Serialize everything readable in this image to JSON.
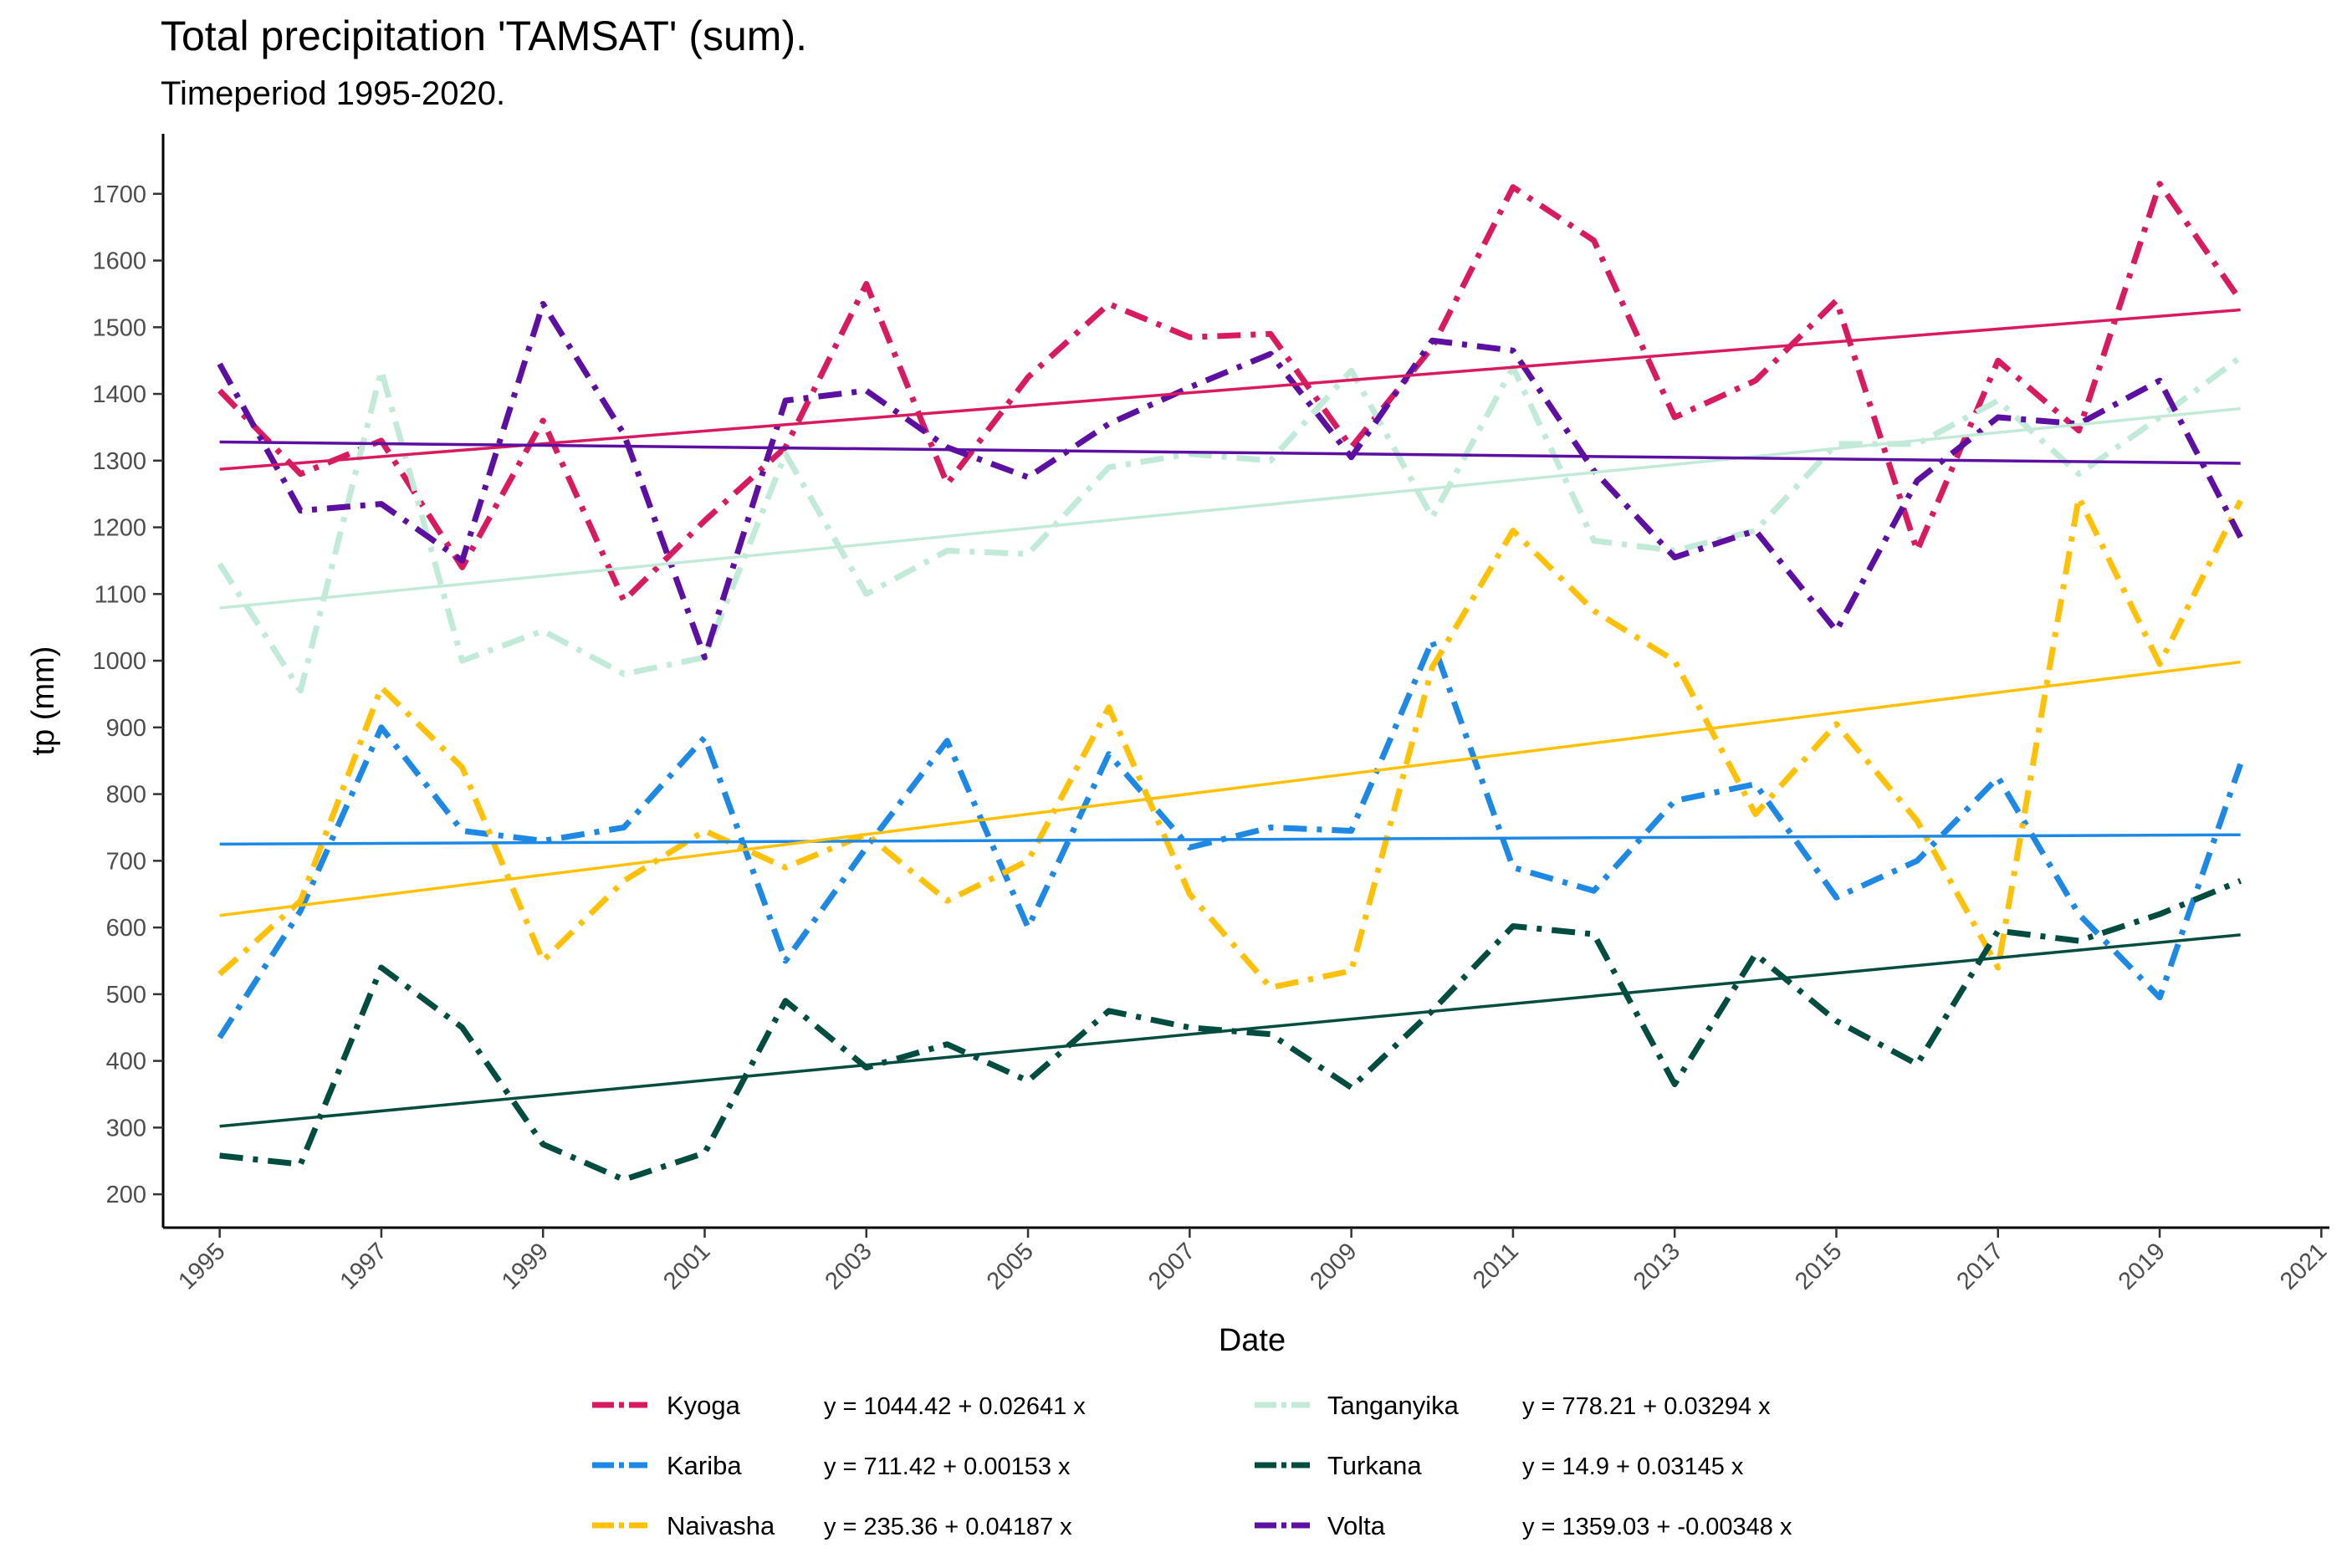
{
  "chart_data": {
    "type": "line",
    "title": "Total precipitation 'TAMSAT' (sum).",
    "subtitle": "Timeperiod 1995-2020.",
    "xlabel": "Date",
    "ylabel": "tp (mm)",
    "xlim": [
      1994.3,
      2021.1
    ],
    "ylim": [
      150,
      1790
    ],
    "x_ticks": [
      "1995",
      "1997",
      "1999",
      "2001",
      "2003",
      "2005",
      "2007",
      "2009",
      "2011",
      "2013",
      "2015",
      "2017",
      "2019",
      "2021"
    ],
    "y_ticks": [
      "200",
      "300",
      "400",
      "500",
      "600",
      "700",
      "800",
      "900",
      "1000",
      "1100",
      "1200",
      "1300",
      "1400",
      "1500",
      "1600",
      "1700"
    ],
    "x": [
      1995,
      1996,
      1997,
      1998,
      1999,
      2000,
      2001,
      2002,
      2003,
      2004,
      2005,
      2006,
      2007,
      2008,
      2009,
      2010,
      2011,
      2012,
      2013,
      2014,
      2015,
      2016,
      2017,
      2018,
      2019,
      2020
    ],
    "grid": false,
    "legend_position": "bottom",
    "series": [
      {
        "name": "Kyoga",
        "color": "#D81B60",
        "equation": "y = 1044.42 + 0.02641 x",
        "values": [
          1405,
          1280,
          1330,
          1140,
          1360,
          1090,
          1210,
          1320,
          1565,
          1265,
          1425,
          1535,
          1485,
          1490,
          1320,
          1470,
          1710,
          1630,
          1365,
          1420,
          1540,
          1165,
          1450,
          1345,
          1715,
          1540
        ],
        "trend": [
          1287,
          1526
        ]
      },
      {
        "name": "Kariba",
        "color": "#1E88E5",
        "equation": "y = 711.42 + 0.00153 x",
        "values": [
          435,
          625,
          900,
          745,
          730,
          750,
          885,
          550,
          720,
          880,
          600,
          860,
          720,
          750,
          745,
          1030,
          690,
          655,
          790,
          815,
          645,
          700,
          825,
          620,
          495,
          845
        ],
        "trend": [
          725,
          739
        ]
      },
      {
        "name": "Naivasha",
        "color": "#FFC107",
        "equation": "y = 235.36 + 0.04187 x",
        "values": [
          530,
          640,
          960,
          840,
          550,
          670,
          745,
          690,
          740,
          640,
          700,
          930,
          650,
          510,
          535,
          990,
          1195,
          1075,
          1000,
          770,
          905,
          760,
          540,
          1245,
          995,
          1240
        ],
        "trend": [
          618,
          998
        ]
      },
      {
        "name": "Tanganyika",
        "color": "#C2EAD9",
        "equation": "y = 778.21 + 0.03294 x",
        "values": [
          1145,
          955,
          1435,
          1000,
          1045,
          980,
          1005,
          1310,
          1100,
          1165,
          1160,
          1290,
          1310,
          1300,
          1435,
          1215,
          1440,
          1180,
          1165,
          1195,
          1325,
          1325,
          1390,
          1280,
          1365,
          1455
        ],
        "trend": [
          1079,
          1378
        ]
      },
      {
        "name": "Turkana",
        "color": "#004D40",
        "equation": "y = 14.9 + 0.03145 x",
        "values": [
          258,
          245,
          540,
          450,
          275,
          222,
          262,
          490,
          390,
          425,
          370,
          475,
          450,
          440,
          360,
          475,
          602,
          590,
          365,
          560,
          460,
          395,
          595,
          580,
          620,
          670
        ],
        "trend": [
          302,
          589
        ]
      },
      {
        "name": "Volta",
        "color": "#5C0FA0",
        "equation": "y = 1359.03 + -0.00348 x",
        "values": [
          1445,
          1225,
          1235,
          1150,
          1535,
          1340,
          1005,
          1390,
          1405,
          1320,
          1275,
          1355,
          1410,
          1460,
          1305,
          1480,
          1465,
          1285,
          1155,
          1195,
          1045,
          1270,
          1365,
          1355,
          1420,
          1185
        ],
        "trend": [
          1328,
          1296
        ]
      }
    ]
  }
}
